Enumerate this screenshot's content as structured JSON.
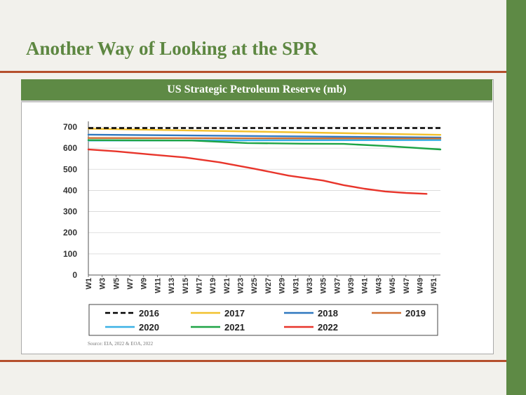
{
  "slide": {
    "title": "Another Way of Looking at the SPR",
    "chart_header": "US Strategic Petroleum Reserve (mb)",
    "source": "Source: EIA, 2022 & EOA, 2022",
    "colors": {
      "accent_green": "#5e8a45",
      "rule": "#b5502d",
      "title_green": "#5d8741"
    }
  },
  "chart_data": {
    "type": "line",
    "title": "US Strategic Petroleum Reserve (mb)",
    "xlabel": "",
    "ylabel": "",
    "ylim": [
      0,
      700
    ],
    "yticks": [
      0,
      100,
      200,
      300,
      400,
      500,
      600,
      700
    ],
    "grid": true,
    "legend_position": "bottom",
    "x_labels": [
      "W1",
      "W3",
      "W5",
      "W7",
      "W9",
      "W11",
      "W13",
      "W15",
      "W17",
      "W19",
      "W21",
      "W23",
      "W25",
      "W27",
      "W29",
      "W31",
      "W33",
      "W35",
      "W37",
      "W39",
      "W41",
      "W43",
      "W45",
      "W47",
      "W49",
      "W51"
    ],
    "series": [
      {
        "name": "2016",
        "color": "#000000",
        "dashed": true,
        "weeks": [
          1,
          52
        ],
        "values": [
          695,
          695
        ]
      },
      {
        "name": "2017",
        "color": "#f2c12e",
        "dashed": false,
        "weeks": [
          1,
          52
        ],
        "values": [
          692,
          663
        ]
      },
      {
        "name": "2018",
        "color": "#2f78bf",
        "dashed": false,
        "weeks": [
          1,
          52
        ],
        "values": [
          664,
          650
        ]
      },
      {
        "name": "2019",
        "color": "#d07033",
        "dashed": false,
        "weeks": [
          1,
          52
        ],
        "values": [
          648,
          645
        ]
      },
      {
        "name": "2020",
        "color": "#3bb1e6",
        "dashed": false,
        "weeks": [
          1,
          52
        ],
        "values": [
          636,
          638
        ]
      },
      {
        "name": "2021",
        "color": "#1ea446",
        "dashed": false,
        "weeks": [
          1,
          8,
          16,
          24,
          32,
          38,
          44,
          52
        ],
        "values": [
          638,
          637,
          636,
          624,
          621,
          620,
          610,
          594
        ]
      },
      {
        "name": "2022",
        "color": "#e8352b",
        "dashed": false,
        "weeks": [
          1,
          5,
          10,
          15,
          20,
          25,
          30,
          35,
          38,
          41,
          44,
          47,
          50
        ],
        "values": [
          594,
          585,
          570,
          556,
          533,
          503,
          470,
          447,
          425,
          408,
          395,
          388,
          384
        ]
      }
    ]
  }
}
